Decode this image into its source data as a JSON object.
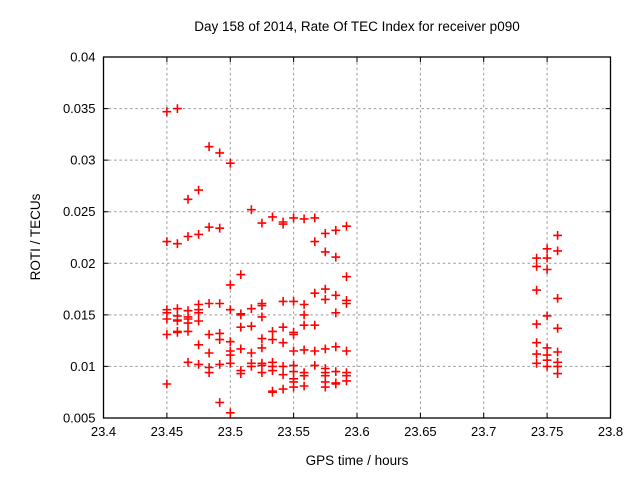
{
  "chart_data": {
    "type": "scatter",
    "title": "Day 158 of 2014, Rate Of TEC Index for receiver p090",
    "xlabel": "GPS time / hours",
    "ylabel": "ROTI / TECUs",
    "xlim": [
      23.4,
      23.8
    ],
    "ylim": [
      0.005,
      0.04
    ],
    "grid": true,
    "legend": "none",
    "colors": {
      "marker": "#ff0000",
      "grid": "#999999",
      "border": "#000000",
      "text": "#000000",
      "background": "#ffffff"
    },
    "marker_style": "plus",
    "xticks": [
      {
        "v": 23.4,
        "label": "23.4"
      },
      {
        "v": 23.45,
        "label": "23.45"
      },
      {
        "v": 23.5,
        "label": "23.5"
      },
      {
        "v": 23.55,
        "label": "23.55"
      },
      {
        "v": 23.6,
        "label": "23.6"
      },
      {
        "v": 23.65,
        "label": "23.65"
      },
      {
        "v": 23.7,
        "label": "23.7"
      },
      {
        "v": 23.75,
        "label": "23.75"
      },
      {
        "v": 23.8,
        "label": "23.8"
      }
    ],
    "yticks": [
      {
        "v": 0.005,
        "label": "0.005"
      },
      {
        "v": 0.01,
        "label": "0.01"
      },
      {
        "v": 0.015,
        "label": "0.015"
      },
      {
        "v": 0.02,
        "label": "0.02"
      },
      {
        "v": 0.025,
        "label": "0.025"
      },
      {
        "v": 0.03,
        "label": "0.03"
      },
      {
        "v": 0.035,
        "label": "0.035"
      },
      {
        "v": 0.04,
        "label": "0.04"
      }
    ],
    "series": [
      {
        "name": "ROTI",
        "points": [
          [
            23.45,
            0.0347
          ],
          [
            23.45,
            0.0221
          ],
          [
            23.45,
            0.0155
          ],
          [
            23.45,
            0.0152
          ],
          [
            23.45,
            0.0146
          ],
          [
            23.45,
            0.0131
          ],
          [
            23.45,
            0.0083
          ],
          [
            23.4583,
            0.035
          ],
          [
            23.4583,
            0.0219
          ],
          [
            23.4583,
            0.0156
          ],
          [
            23.4583,
            0.0149
          ],
          [
            23.4583,
            0.0145
          ],
          [
            23.4583,
            0.0144
          ],
          [
            23.4583,
            0.0134
          ],
          [
            23.4583,
            0.0133
          ],
          [
            23.4667,
            0.0262
          ],
          [
            23.4667,
            0.0226
          ],
          [
            23.4667,
            0.0154
          ],
          [
            23.4667,
            0.0148
          ],
          [
            23.4667,
            0.0146
          ],
          [
            23.4667,
            0.0142
          ],
          [
            23.4667,
            0.0134
          ],
          [
            23.4667,
            0.0104
          ],
          [
            23.475,
            0.0271
          ],
          [
            23.475,
            0.0228
          ],
          [
            23.475,
            0.016
          ],
          [
            23.475,
            0.0155
          ],
          [
            23.475,
            0.0152
          ],
          [
            23.475,
            0.0144
          ],
          [
            23.475,
            0.0121
          ],
          [
            23.475,
            0.0102
          ],
          [
            23.4833,
            0.0313
          ],
          [
            23.4833,
            0.0235
          ],
          [
            23.4833,
            0.0161
          ],
          [
            23.4833,
            0.0131
          ],
          [
            23.4833,
            0.0113
          ],
          [
            23.4833,
            0.0099
          ],
          [
            23.4833,
            0.0094
          ],
          [
            23.4917,
            0.0307
          ],
          [
            23.4917,
            0.0234
          ],
          [
            23.4917,
            0.0161
          ],
          [
            23.4917,
            0.0132
          ],
          [
            23.4917,
            0.0126
          ],
          [
            23.4917,
            0.0102
          ],
          [
            23.4917,
            0.0065
          ],
          [
            23.5,
            0.0297
          ],
          [
            23.5,
            0.0179
          ],
          [
            23.5,
            0.0155
          ],
          [
            23.5,
            0.0124
          ],
          [
            23.5,
            0.0115
          ],
          [
            23.5,
            0.0111
          ],
          [
            23.5,
            0.0103
          ],
          [
            23.5,
            0.0055
          ],
          [
            23.5083,
            0.0189
          ],
          [
            23.5083,
            0.0151
          ],
          [
            23.5083,
            0.015
          ],
          [
            23.5083,
            0.0138
          ],
          [
            23.5083,
            0.0117
          ],
          [
            23.5083,
            0.0096
          ],
          [
            23.5083,
            0.0093
          ],
          [
            23.5167,
            0.0252
          ],
          [
            23.5167,
            0.0156
          ],
          [
            23.5167,
            0.0139
          ],
          [
            23.5167,
            0.0113
          ],
          [
            23.5167,
            0.0103
          ],
          [
            23.5167,
            0.01
          ],
          [
            23.525,
            0.0239
          ],
          [
            23.525,
            0.0161
          ],
          [
            23.525,
            0.0159
          ],
          [
            23.525,
            0.0148
          ],
          [
            23.525,
            0.0127
          ],
          [
            23.525,
            0.0118
          ],
          [
            23.525,
            0.0103
          ],
          [
            23.525,
            0.0101
          ],
          [
            23.525,
            0.0094
          ],
          [
            23.5333,
            0.0245
          ],
          [
            23.5333,
            0.0134
          ],
          [
            23.5333,
            0.0126
          ],
          [
            23.5333,
            0.0104
          ],
          [
            23.5333,
            0.01
          ],
          [
            23.5333,
            0.0096
          ],
          [
            23.5333,
            0.0076
          ],
          [
            23.5333,
            0.0075
          ],
          [
            23.5417,
            0.024
          ],
          [
            23.5417,
            0.0238
          ],
          [
            23.5417,
            0.0163
          ],
          [
            23.5417,
            0.0138
          ],
          [
            23.5417,
            0.0123
          ],
          [
            23.5417,
            0.01
          ],
          [
            23.5417,
            0.0092
          ],
          [
            23.5417,
            0.0078
          ],
          [
            23.55,
            0.0244
          ],
          [
            23.55,
            0.0163
          ],
          [
            23.55,
            0.0133
          ],
          [
            23.55,
            0.0131
          ],
          [
            23.55,
            0.0115
          ],
          [
            23.55,
            0.0101
          ],
          [
            23.55,
            0.0095
          ],
          [
            23.55,
            0.0088
          ],
          [
            23.55,
            0.0085
          ],
          [
            23.55,
            0.008
          ],
          [
            23.5583,
            0.0243
          ],
          [
            23.5583,
            0.016
          ],
          [
            23.5583,
            0.015
          ],
          [
            23.5583,
            0.014
          ],
          [
            23.5583,
            0.0116
          ],
          [
            23.5583,
            0.0094
          ],
          [
            23.5583,
            0.0091
          ],
          [
            23.5583,
            0.0081
          ],
          [
            23.5667,
            0.0244
          ],
          [
            23.5667,
            0.0221
          ],
          [
            23.5667,
            0.0171
          ],
          [
            23.5667,
            0.014
          ],
          [
            23.5667,
            0.0115
          ],
          [
            23.5667,
            0.0101
          ],
          [
            23.575,
            0.0229
          ],
          [
            23.575,
            0.0211
          ],
          [
            23.575,
            0.0175
          ],
          [
            23.575,
            0.0165
          ],
          [
            23.575,
            0.0117
          ],
          [
            23.575,
            0.0098
          ],
          [
            23.575,
            0.0094
          ],
          [
            23.575,
            0.0091
          ],
          [
            23.575,
            0.0085
          ],
          [
            23.575,
            0.008
          ],
          [
            23.5833,
            0.0232
          ],
          [
            23.5833,
            0.0206
          ],
          [
            23.5833,
            0.0169
          ],
          [
            23.5833,
            0.0152
          ],
          [
            23.5833,
            0.0119
          ],
          [
            23.5833,
            0.0095
          ],
          [
            23.5833,
            0.0084
          ],
          [
            23.5833,
            0.0083
          ],
          [
            23.5917,
            0.0236
          ],
          [
            23.5917,
            0.0187
          ],
          [
            23.5917,
            0.0164
          ],
          [
            23.5917,
            0.0161
          ],
          [
            23.5917,
            0.0115
          ],
          [
            23.5917,
            0.0094
          ],
          [
            23.5917,
            0.0091
          ],
          [
            23.5917,
            0.0086
          ],
          [
            23.7417,
            0.0205
          ],
          [
            23.7417,
            0.0197
          ],
          [
            23.7417,
            0.0174
          ],
          [
            23.7417,
            0.0141
          ],
          [
            23.7417,
            0.0123
          ],
          [
            23.7417,
            0.0112
          ],
          [
            23.7417,
            0.0103
          ],
          [
            23.75,
            0.0214
          ],
          [
            23.75,
            0.0205
          ],
          [
            23.75,
            0.0194
          ],
          [
            23.75,
            0.0149
          ],
          [
            23.75,
            0.0118
          ],
          [
            23.75,
            0.0111
          ],
          [
            23.75,
            0.0106
          ],
          [
            23.75,
            0.01
          ],
          [
            23.7583,
            0.0227
          ],
          [
            23.7583,
            0.0212
          ],
          [
            23.7583,
            0.0166
          ],
          [
            23.7583,
            0.0137
          ],
          [
            23.7583,
            0.0114
          ],
          [
            23.7583,
            0.0104
          ],
          [
            23.7583,
            0.01
          ],
          [
            23.7583,
            0.0093
          ]
        ]
      }
    ]
  }
}
